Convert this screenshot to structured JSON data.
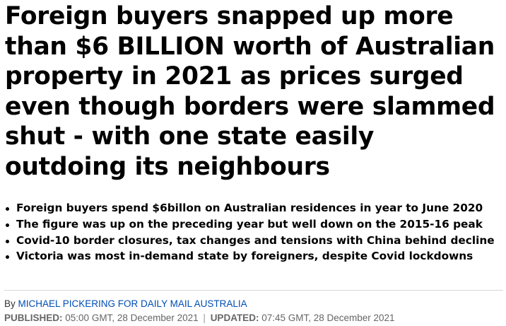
{
  "headline": "Foreign buyers snapped up more than $6 BILLION worth of Australian property in 2021 as prices surged even though borders were slammed shut - with one state easily outdoing its neighbours",
  "bullets": [
    "Foreign buyers spend $6billon on Australian residences in year to June 2020",
    "The figure was up on the preceding year but well down on the 2015-16 peak",
    "Covid-10 border closures, tax changes and tensions with China behind decline",
    "Victoria was most in-demand state by foreigners, despite Covid lockdowns"
  ],
  "byline": {
    "prefix": "By",
    "author": "MICHAEL PICKERING FOR DAILY MAIL AUSTRALIA"
  },
  "dates": {
    "published_label": "PUBLISHED:",
    "published_value": "05:00 GMT, 28 December 2021",
    "separator": "|",
    "updated_label": "UPDATED:",
    "updated_value": "07:45 GMT, 28 December 2021"
  }
}
